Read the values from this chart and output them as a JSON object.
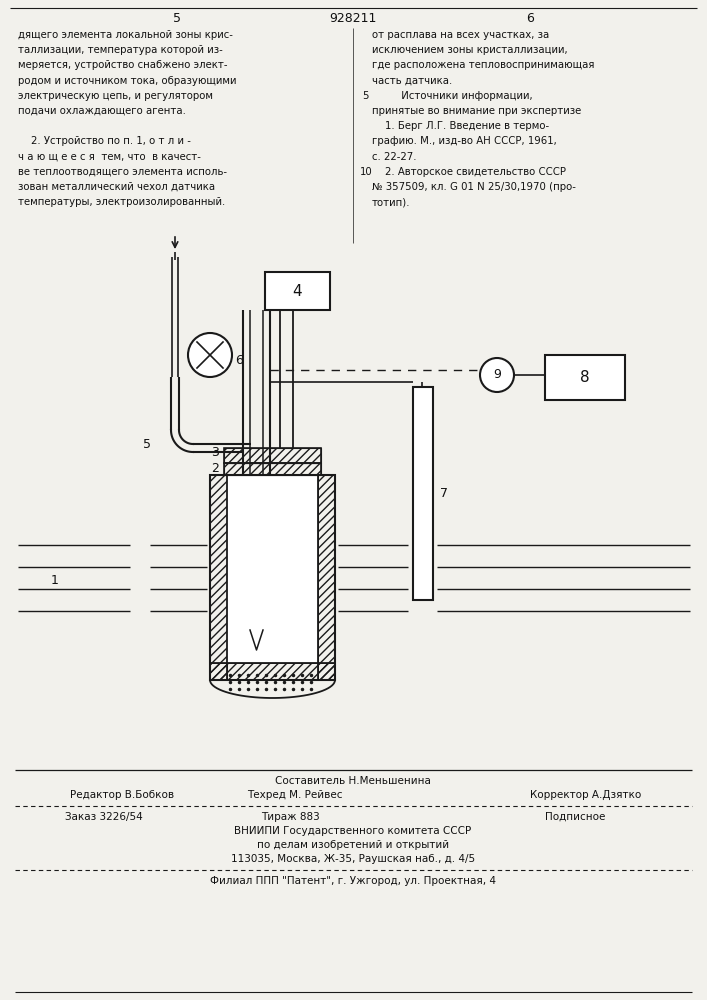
{
  "bg_color": "#f2f1ec",
  "line_color": "#1a1a1a",
  "text_color": "#111111",
  "patent_number": "928211",
  "page_left": "5",
  "page_right": "6",
  "left_col_lines": [
    "дящего элемента локальной зоны крис-",
    "таллизации, температура которой из-",
    "меряется, устройство снабжено элект-",
    "родом и источником тока, образующими",
    "электрическую цепь, и регулятором",
    "подачи охлаждающего агента.",
    "",
    "    2. Устройство по п. 1, о т л и -",
    "ч а ю щ е е с я  тем, что  в качест-",
    "ве теплоотводящего элемента исполь-",
    "зован металлический чехол датчика",
    "температуры, электроизолированный."
  ],
  "right_col_lines": [
    "от расплава на всех участках, за",
    "исключением зоны кристаллизации,",
    "где расположена тепловоспринимающая",
    "часть датчика.",
    "         Источники информации,",
    "принятые во внимание при экспертизе",
    "    1. Берг Л.Г. Введение в термо-",
    "графию. М., изд-во АН СССР, 1961,",
    "с. 22-27.",
    "    2. Авторское свидетельство СССР",
    "№ 357509, кл. G 01 N 25/30,1970 (про-",
    "тотип)."
  ],
  "footer_l1": "Составитель Н.Меньшенина",
  "footer_l2_a": "Редактор В.Бобков",
  "footer_l2_b": "Техред М. Рейвес",
  "footer_l2_c": "Корректор А.Дзятко",
  "footer_l3_a": "Заказ 3226/54",
  "footer_l3_b": "Тираж 883",
  "footer_l3_c": "Подписное",
  "footer_l4": "ВНИИПИ Государственного комитета СССР",
  "footer_l5": "по делам изобретений и открытий",
  "footer_l6": "113035, Москва, Ж-35, Раушская наб., д. 4/5",
  "footer_l7": "Филиал ППП \"Патент\", г. Ужгород, ул. Проектная, 4"
}
